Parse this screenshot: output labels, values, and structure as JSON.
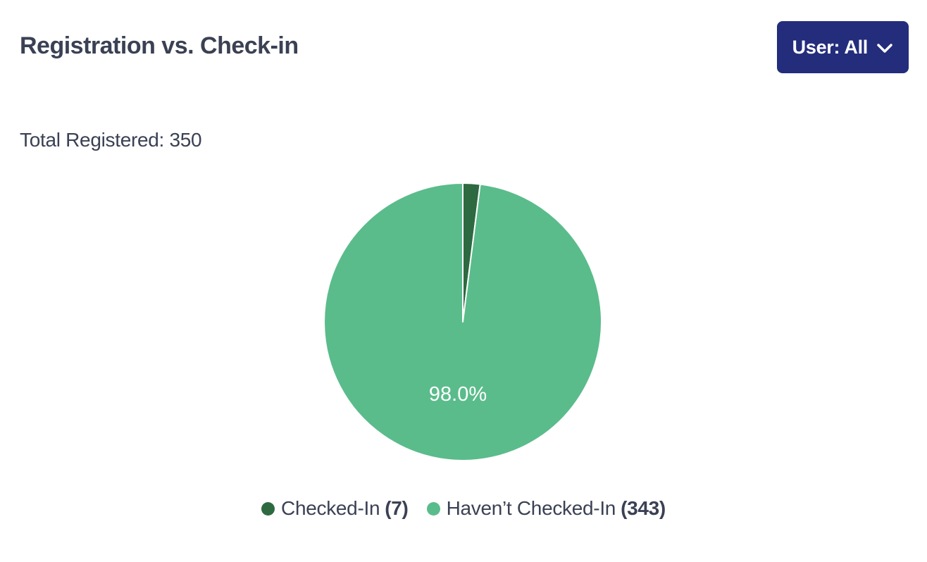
{
  "header": {
    "title": "Registration vs. Check-in",
    "user_filter_button": {
      "label": "User: All",
      "icon": "chevron-down-icon",
      "background": "#232d7c",
      "text_color": "#ffffff"
    }
  },
  "summary": {
    "total_registered_text": "Total Registered: 350",
    "total_registered_value": 350
  },
  "chart_data": {
    "type": "pie",
    "title": "Registration vs. Check-in",
    "total": 350,
    "start_angle_deg": 0,
    "direction": "clockwise",
    "border_color": "#ffffff",
    "legend_position": "bottom",
    "slices": [
      {
        "label": "Checked-In",
        "value": 7,
        "percent": 2.0,
        "color": "#2d6a41"
      },
      {
        "label": "Haven’t Checked-In",
        "value": 343,
        "percent": 98.0,
        "color": "#5abc8b"
      }
    ],
    "displayed_slice_label": "98.0%"
  },
  "legend": {
    "items": [
      {
        "label": "Checked-In",
        "count": "(7)",
        "color": "#2d6a41"
      },
      {
        "label": "Haven’t Checked-In",
        "count": "(343)",
        "color": "#5abc8b"
      }
    ]
  },
  "colors": {
    "accent_navy": "#232d7c",
    "text": "#3b4154",
    "dark_green": "#2d6a41",
    "light_green": "#5abc8b",
    "background": "#ffffff"
  }
}
